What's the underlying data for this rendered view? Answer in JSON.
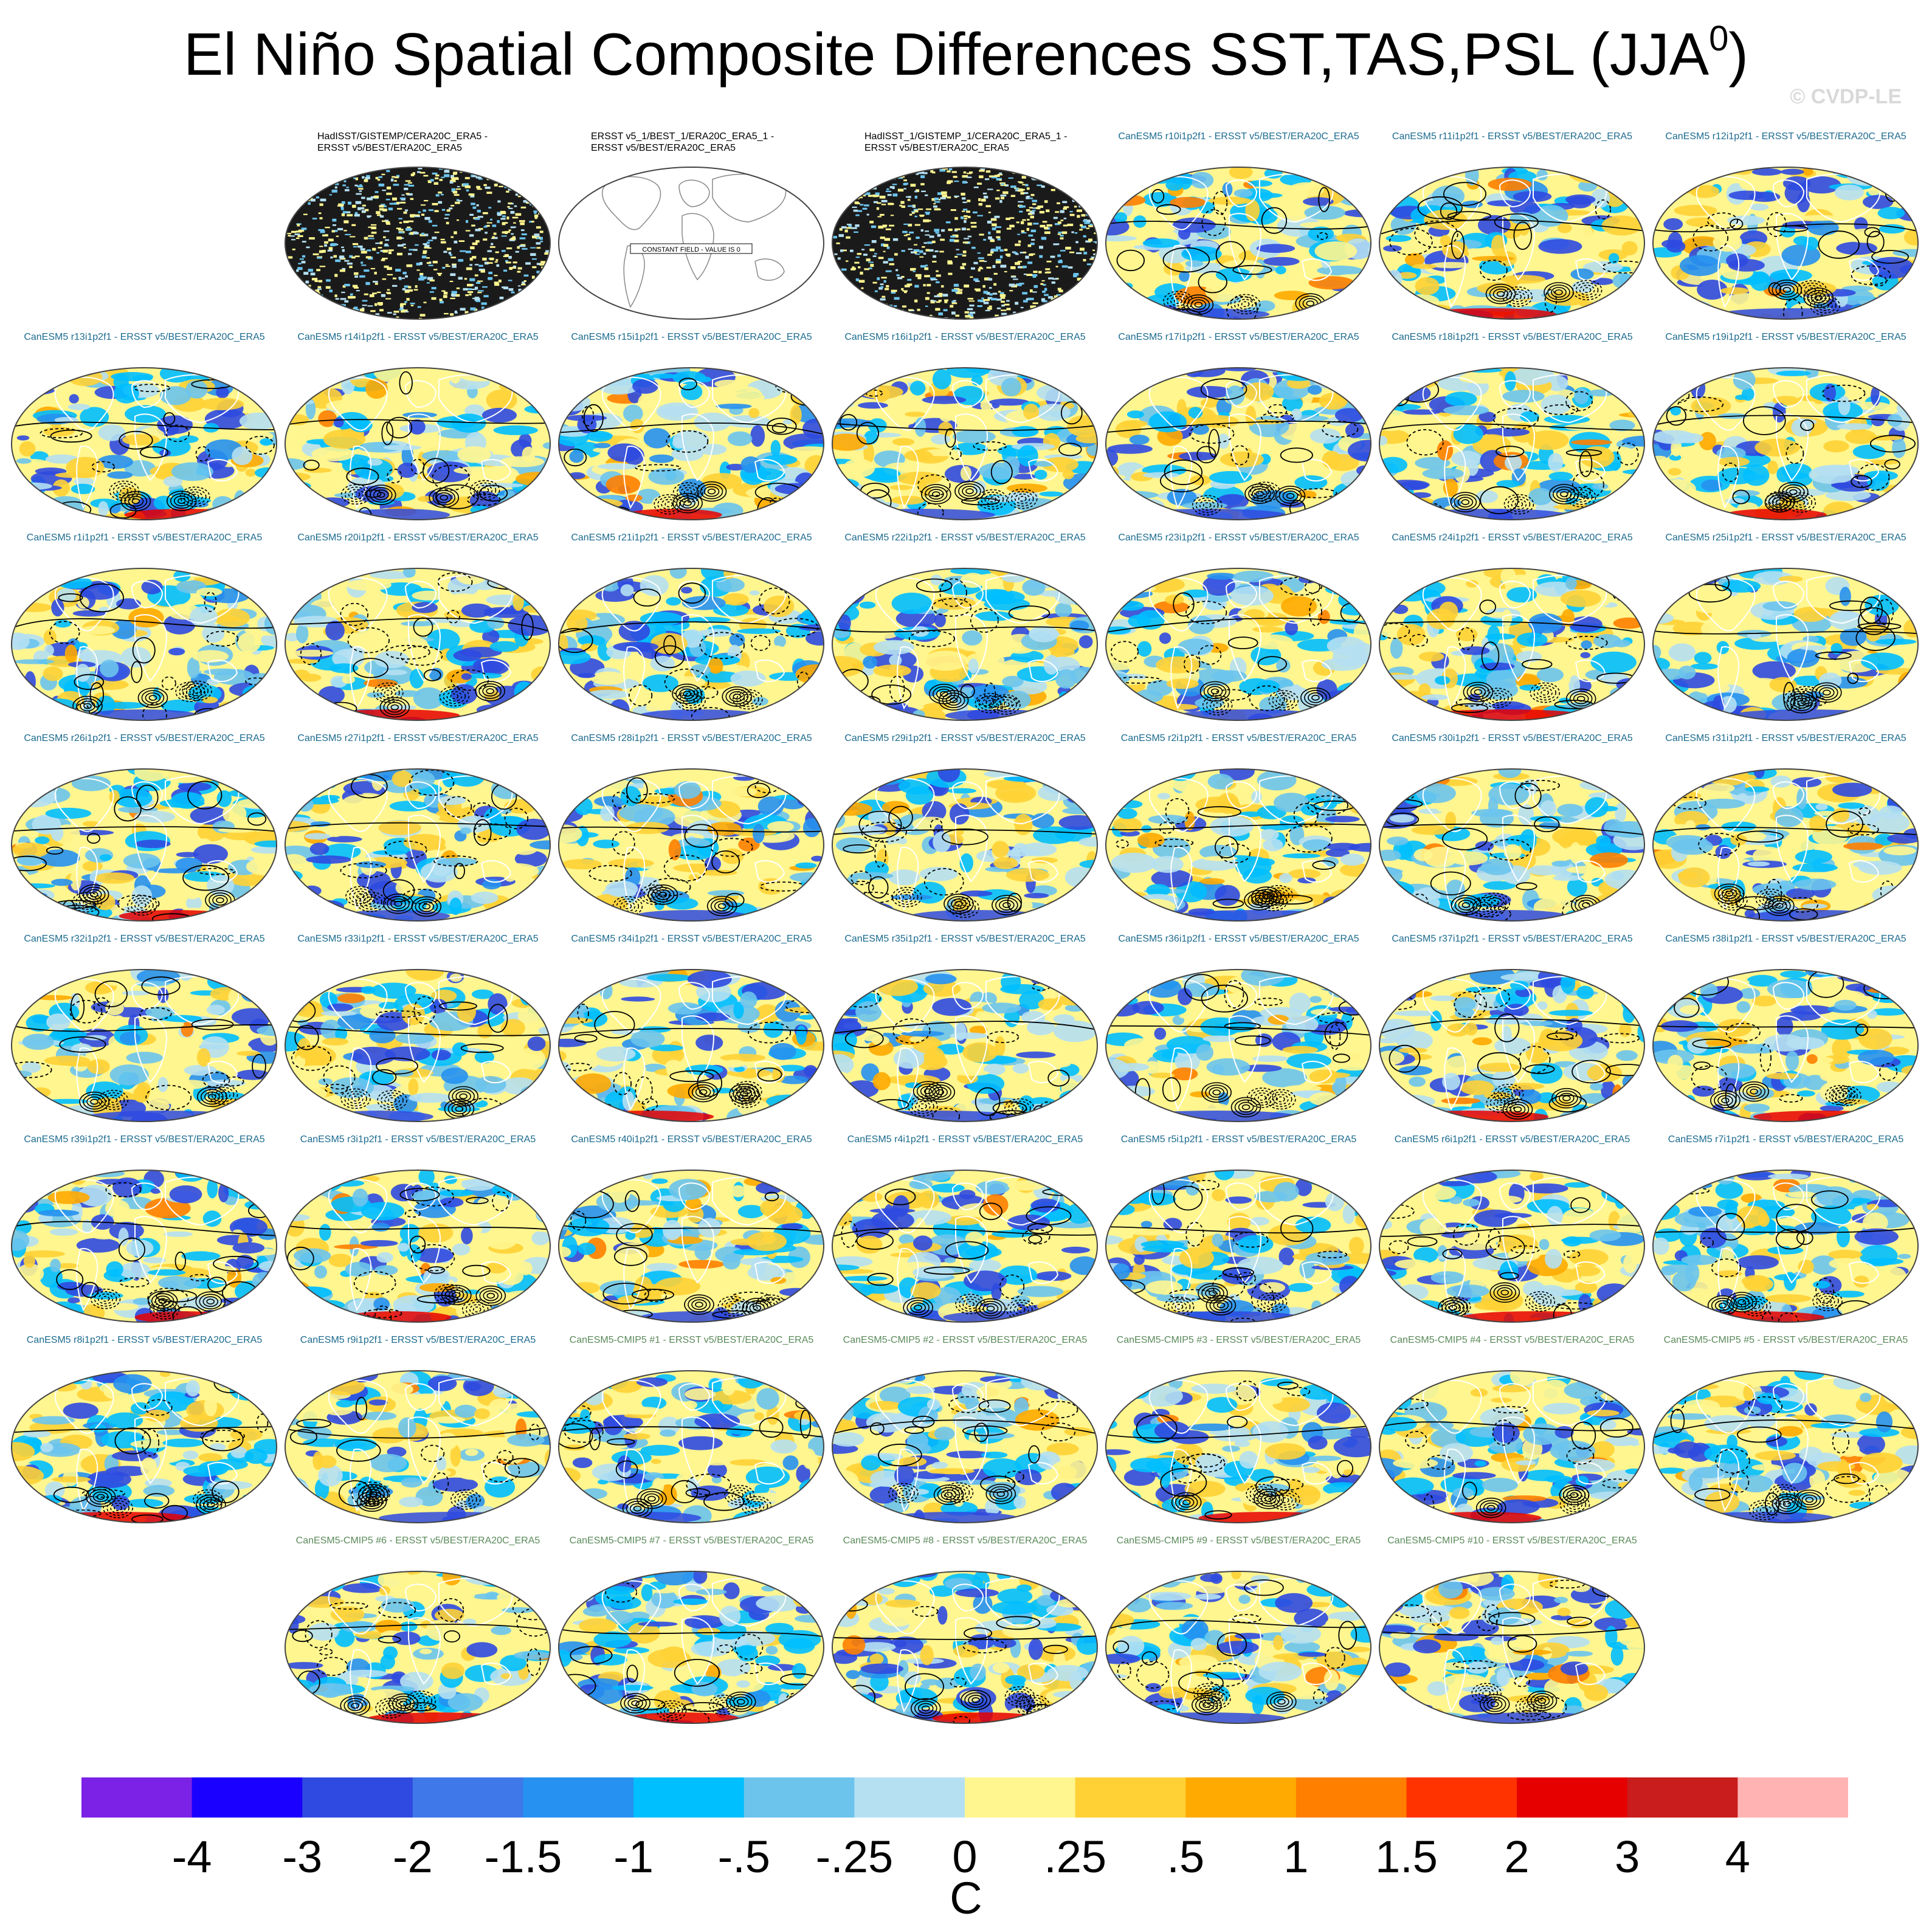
{
  "title": "El Niño Spatial Composite Differences SST,TAS,PSL (JJA",
  "title_sup": "0",
  "title_close": ")",
  "copyright": "© CVDP-LE",
  "constant_field_label": "CONSTANT FIELD - VALUE IS 0",
  "colorbar": {
    "units": "C",
    "ticks": [
      "-4",
      "-3",
      "-2",
      "-1.5",
      "-1",
      "-.5",
      "-.25",
      "0",
      ".25",
      ".5",
      "1",
      "1.5",
      "2",
      "3",
      "4"
    ],
    "colors": [
      "#7b22e6",
      "#1a00ff",
      "#2f4ae0",
      "#3f78e8",
      "#2691f0",
      "#00bfff",
      "#6cc4ed",
      "#b5e0f2",
      "#fff68f",
      "#ffd135",
      "#ffaa00",
      "#ff7f00",
      "#ff3300",
      "#e60000",
      "#c91c1c",
      "#ffb3b3"
    ]
  },
  "panels": [
    {
      "type": "obs",
      "title": "HadISST/GISTEMP/CERA20C_ERA5 -\nERSST v5/BEST/ERA20C_ERA5",
      "style": "noise"
    },
    {
      "type": "obs",
      "title": "ERSST v5_1/BEST_1/ERA20C_ERA5_1 -\nERSST v5/BEST/ERA20C_ERA5",
      "style": "blank"
    },
    {
      "type": "obs",
      "title": "HadISST_1/GISTEMP_1/CERA20C_ERA5_1 -\nERSST v5/BEST/ERA20C_ERA5",
      "style": "noise"
    },
    {
      "type": "model",
      "title": "CanESM5 r10i1p2f1 - ERSST v5/BEST/ERA20C_ERA5"
    },
    {
      "type": "model",
      "title": "CanESM5 r11i1p2f1 - ERSST v5/BEST/ERA20C_ERA5"
    },
    {
      "type": "model",
      "title": "CanESM5 r12i1p2f1 - ERSST v5/BEST/ERA20C_ERA5"
    },
    {
      "type": "model",
      "title": "CanESM5 r13i1p2f1 - ERSST v5/BEST/ERA20C_ERA5"
    },
    {
      "type": "model",
      "title": "CanESM5 r14i1p2f1 - ERSST v5/BEST/ERA20C_ERA5"
    },
    {
      "type": "model",
      "title": "CanESM5 r15i1p2f1 - ERSST v5/BEST/ERA20C_ERA5"
    },
    {
      "type": "model",
      "title": "CanESM5 r16i1p2f1 - ERSST v5/BEST/ERA20C_ERA5"
    },
    {
      "type": "model",
      "title": "CanESM5 r17i1p2f1 - ERSST v5/BEST/ERA20C_ERA5"
    },
    {
      "type": "model",
      "title": "CanESM5 r18i1p2f1 - ERSST v5/BEST/ERA20C_ERA5"
    },
    {
      "type": "model",
      "title": "CanESM5 r19i1p2f1 - ERSST v5/BEST/ERA20C_ERA5"
    },
    {
      "type": "model",
      "title": "CanESM5 r1i1p2f1 - ERSST v5/BEST/ERA20C_ERA5"
    },
    {
      "type": "model",
      "title": "CanESM5 r20i1p2f1 - ERSST v5/BEST/ERA20C_ERA5"
    },
    {
      "type": "model",
      "title": "CanESM5 r21i1p2f1 - ERSST v5/BEST/ERA20C_ERA5"
    },
    {
      "type": "model",
      "title": "CanESM5 r22i1p2f1 - ERSST v5/BEST/ERA20C_ERA5"
    },
    {
      "type": "model",
      "title": "CanESM5 r23i1p2f1 - ERSST v5/BEST/ERA20C_ERA5"
    },
    {
      "type": "model",
      "title": "CanESM5 r24i1p2f1 - ERSST v5/BEST/ERA20C_ERA5"
    },
    {
      "type": "model",
      "title": "CanESM5 r25i1p2f1 - ERSST v5/BEST/ERA20C_ERA5"
    },
    {
      "type": "model",
      "title": "CanESM5 r26i1p2f1 - ERSST v5/BEST/ERA20C_ERA5"
    },
    {
      "type": "model",
      "title": "CanESM5 r27i1p2f1 - ERSST v5/BEST/ERA20C_ERA5"
    },
    {
      "type": "model",
      "title": "CanESM5 r28i1p2f1 - ERSST v5/BEST/ERA20C_ERA5"
    },
    {
      "type": "model",
      "title": "CanESM5 r29i1p2f1 - ERSST v5/BEST/ERA20C_ERA5"
    },
    {
      "type": "model",
      "title": "CanESM5 r2i1p2f1 - ERSST v5/BEST/ERA20C_ERA5"
    },
    {
      "type": "model",
      "title": "CanESM5 r30i1p2f1 - ERSST v5/BEST/ERA20C_ERA5"
    },
    {
      "type": "model",
      "title": "CanESM5 r31i1p2f1 - ERSST v5/BEST/ERA20C_ERA5"
    },
    {
      "type": "model",
      "title": "CanESM5 r32i1p2f1 - ERSST v5/BEST/ERA20C_ERA5"
    },
    {
      "type": "model",
      "title": "CanESM5 r33i1p2f1 - ERSST v5/BEST/ERA20C_ERA5"
    },
    {
      "type": "model",
      "title": "CanESM5 r34i1p2f1 - ERSST v5/BEST/ERA20C_ERA5"
    },
    {
      "type": "model",
      "title": "CanESM5 r35i1p2f1 - ERSST v5/BEST/ERA20C_ERA5"
    },
    {
      "type": "model",
      "title": "CanESM5 r36i1p2f1 - ERSST v5/BEST/ERA20C_ERA5"
    },
    {
      "type": "model",
      "title": "CanESM5 r37i1p2f1 - ERSST v5/BEST/ERA20C_ERA5"
    },
    {
      "type": "model",
      "title": "CanESM5 r38i1p2f1 - ERSST v5/BEST/ERA20C_ERA5"
    },
    {
      "type": "model",
      "title": "CanESM5 r39i1p2f1 - ERSST v5/BEST/ERA20C_ERA5"
    },
    {
      "type": "model",
      "title": "CanESM5 r3i1p2f1 - ERSST v5/BEST/ERA20C_ERA5"
    },
    {
      "type": "model",
      "title": "CanESM5 r40i1p2f1 - ERSST v5/BEST/ERA20C_ERA5"
    },
    {
      "type": "model",
      "title": "CanESM5 r4i1p2f1 - ERSST v5/BEST/ERA20C_ERA5"
    },
    {
      "type": "model",
      "title": "CanESM5 r5i1p2f1 - ERSST v5/BEST/ERA20C_ERA5"
    },
    {
      "type": "model",
      "title": "CanESM5 r6i1p2f1 - ERSST v5/BEST/ERA20C_ERA5"
    },
    {
      "type": "model",
      "title": "CanESM5 r7i1p2f1 - ERSST v5/BEST/ERA20C_ERA5"
    },
    {
      "type": "model",
      "title": "CanESM5 r8i1p2f1 - ERSST v5/BEST/ERA20C_ERA5"
    },
    {
      "type": "model",
      "title": "CanESM5 r9i1p2f1 - ERSST v5/BEST/ERA20C_ERA5"
    },
    {
      "type": "cmip",
      "title": "CanESM5-CMIP5 #1 - ERSST v5/BEST/ERA20C_ERA5"
    },
    {
      "type": "cmip",
      "title": "CanESM5-CMIP5 #2 - ERSST v5/BEST/ERA20C_ERA5"
    },
    {
      "type": "cmip",
      "title": "CanESM5-CMIP5 #3 - ERSST v5/BEST/ERA20C_ERA5"
    },
    {
      "type": "cmip",
      "title": "CanESM5-CMIP5 #4 - ERSST v5/BEST/ERA20C_ERA5"
    },
    {
      "type": "cmip",
      "title": "CanESM5-CMIP5 #5 - ERSST v5/BEST/ERA20C_ERA5"
    },
    {
      "type": "cmip",
      "title": "CanESM5-CMIP5 #6 - ERSST v5/BEST/ERA20C_ERA5"
    },
    {
      "type": "cmip",
      "title": "CanESM5-CMIP5 #7 - ERSST v5/BEST/ERA20C_ERA5"
    },
    {
      "type": "cmip",
      "title": "CanESM5-CMIP5 #8 - ERSST v5/BEST/ERA20C_ERA5"
    },
    {
      "type": "cmip",
      "title": "CanESM5-CMIP5 #9 - ERSST v5/BEST/ERA20C_ERA5"
    },
    {
      "type": "cmip",
      "title": "CanESM5-CMIP5 #10 - ERSST v5/BEST/ERA20C_ERA5"
    }
  ]
}
